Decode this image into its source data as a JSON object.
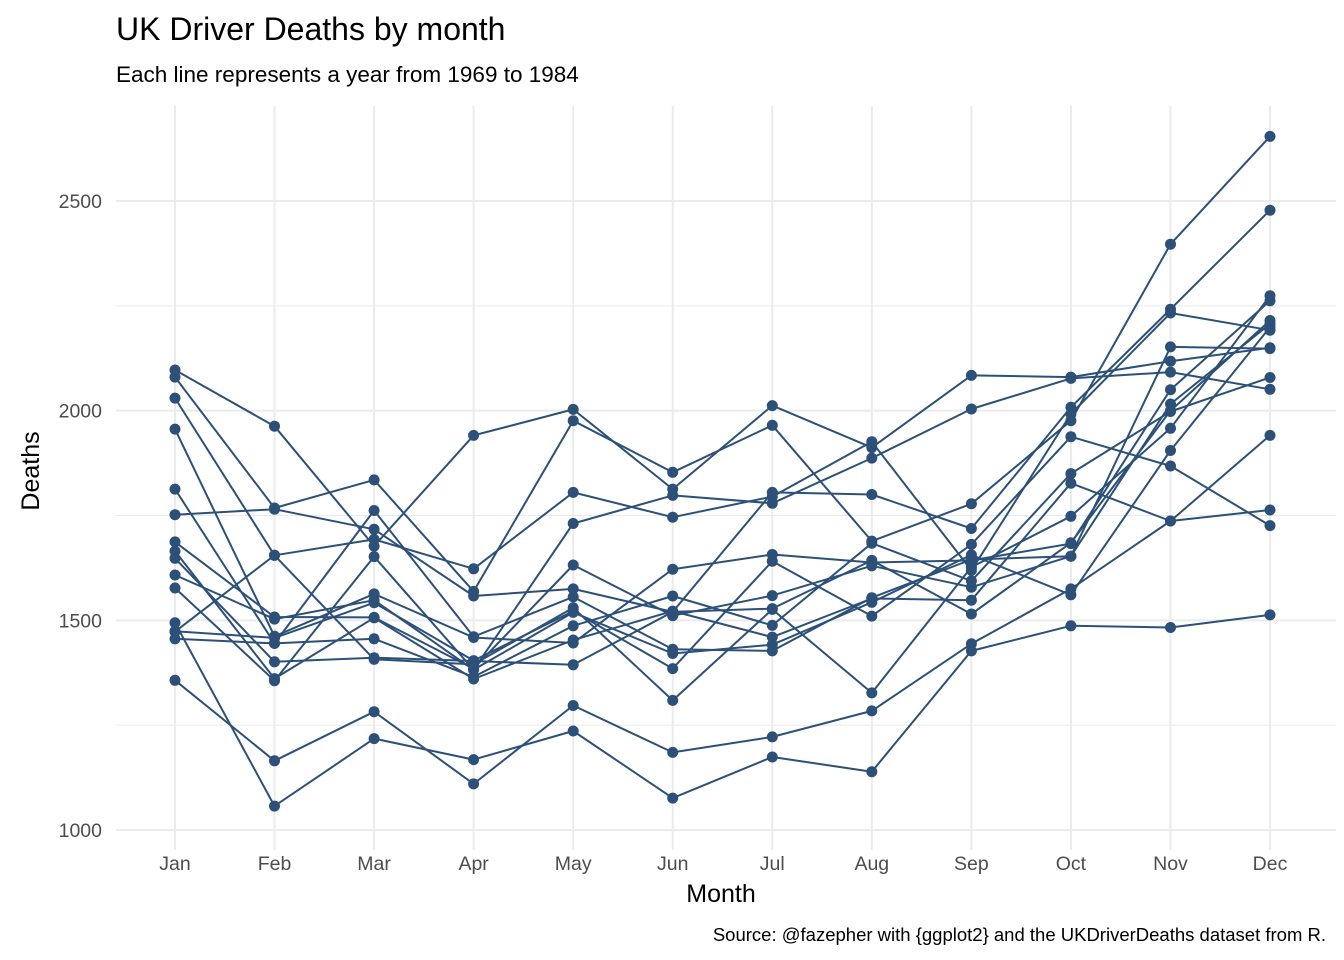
{
  "chart_data": {
    "type": "line",
    "title": "UK Driver Deaths by month",
    "subtitle": "Each line represents a year from 1969 to 1984",
    "xlabel": "Month",
    "ylabel": "Deaths",
    "caption": "Source: @fazepher with {ggplot2} and the UKDriverDeaths dataset from R.",
    "categories": [
      "Jan",
      "Feb",
      "Mar",
      "Apr",
      "May",
      "Jun",
      "Jul",
      "Aug",
      "Sep",
      "Oct",
      "Nov",
      "Dec"
    ],
    "yticks": [
      1000,
      1500,
      2000,
      2500
    ],
    "ylim": [
      960,
      2710
    ],
    "grid": true,
    "legend": "none",
    "color": "#2c5078",
    "series": [
      {
        "values": [
          1687,
          1508,
          1507,
          1385,
          1632,
          1511,
          1559,
          1630,
          1579,
          1653,
          2152,
          2148
        ]
      },
      {
        "values": [
          1752,
          1765,
          1717,
          1558,
          1575,
          1520,
          1805,
          1800,
          1719,
          2008,
          2242,
          2478
        ]
      },
      {
        "values": [
          2030,
          1655,
          1693,
          1623,
          1805,
          1746,
          1795,
          1926,
          1619,
          1992,
          2233,
          2192
        ]
      },
      {
        "values": [
          2080,
          1768,
          1835,
          1569,
          1976,
          1853,
          1965,
          1689,
          1778,
          1976,
          2397,
          2654
        ]
      },
      {
        "values": [
          2097,
          1963,
          1677,
          1941,
          2003,
          1813,
          2012,
          1912,
          2084,
          2080,
          2118,
          2150
        ]
      },
      {
        "values": [
          1608,
          1503,
          1548,
          1382,
          1731,
          1798,
          1779,
          1887,
          2004,
          2077,
          2092,
          2051
        ]
      },
      {
        "values": [
          1577,
          1356,
          1652,
          1382,
          1519,
          1421,
          1442,
          1543,
          1656,
          1561,
          1905,
          2199
        ]
      },
      {
        "values": [
          1473,
          1655,
          1407,
          1395,
          1530,
          1309,
          1526,
          1327,
          1627,
          1748,
          1958,
          2274
        ]
      },
      {
        "values": [
          1648,
          1401,
          1411,
          1403,
          1394,
          1520,
          1528,
          1643,
          1515,
          1685,
          2000,
          2215
        ]
      },
      {
        "values": [
          1956,
          1462,
          1563,
          1459,
          1446,
          1622,
          1657,
          1638,
          1643,
          1683,
          2050,
          2262
        ]
      },
      {
        "values": [
          1813,
          1445,
          1762,
          1461,
          1556,
          1431,
          1427,
          1554,
          1645,
          1653,
          2016,
          2207
        ]
      },
      {
        "values": [
          1665,
          1361,
          1506,
          1360,
          1453,
          1522,
          1460,
          1552,
          1548,
          1827,
          1737,
          1941
        ]
      },
      {
        "values": [
          1474,
          1458,
          1542,
          1404,
          1522,
          1385,
          1641,
          1510,
          1681,
          1938,
          1868,
          1726
        ]
      },
      {
        "values": [
          1456,
          1445,
          1456,
          1365,
          1487,
          1558,
          1488,
          1684,
          1594,
          1850,
          1998,
          2079
        ]
      },
      {
        "values": [
          1494,
          1057,
          1218,
          1168,
          1236,
          1076,
          1174,
          1139,
          1427,
          1487,
          1483,
          1513
        ]
      },
      {
        "values": [
          1357,
          1165,
          1282,
          1110,
          1297,
          1185,
          1222,
          1284,
          1444,
          1575,
          1737,
          1763
        ]
      }
    ]
  }
}
